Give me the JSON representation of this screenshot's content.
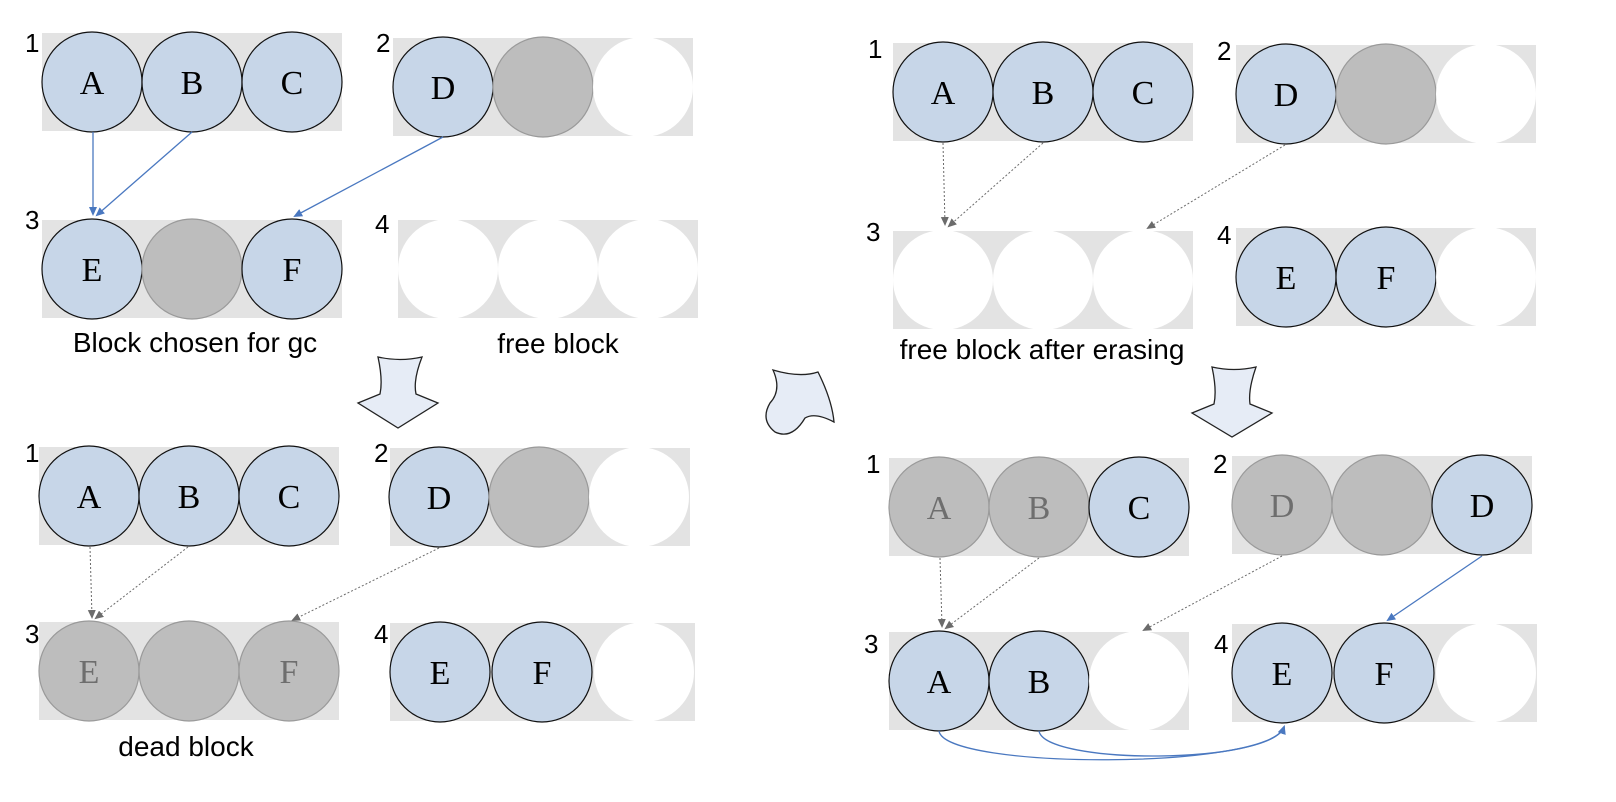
{
  "colors": {
    "block_bg": "#e3e3e3",
    "page_valid": "#c7d6e8",
    "page_invalid": "#bdbdbd",
    "page_free": "#ffffff",
    "text_valid": "#000000",
    "text_invalid": "#6e6e6e",
    "link_valid": "#4a78c0",
    "link_stale": "#6b6b6b",
    "step_arrow_fill": "#e6ecf6"
  },
  "panels": [
    {
      "id": "initial",
      "blocks": [
        {
          "num": "1",
          "pages": [
            {
              "label": "A",
              "state": "valid"
            },
            {
              "label": "B",
              "state": "valid"
            },
            {
              "label": "C",
              "state": "valid"
            }
          ]
        },
        {
          "num": "2",
          "pages": [
            {
              "label": "D",
              "state": "valid"
            },
            {
              "label": "",
              "state": "invalid"
            },
            {
              "label": "",
              "state": "free"
            }
          ]
        },
        {
          "num": "3",
          "pages": [
            {
              "label": "E",
              "state": "valid"
            },
            {
              "label": "",
              "state": "invalid"
            },
            {
              "label": "F",
              "state": "valid"
            }
          ]
        },
        {
          "num": "4",
          "pages": [
            {
              "label": "",
              "state": "free"
            },
            {
              "label": "",
              "state": "free"
            },
            {
              "label": "",
              "state": "free"
            }
          ]
        }
      ],
      "captions": [
        "Block chosen for gc",
        "free block"
      ]
    },
    {
      "id": "after-copy",
      "blocks": [
        {
          "num": "1",
          "pages": [
            {
              "label": "A",
              "state": "valid"
            },
            {
              "label": "B",
              "state": "valid"
            },
            {
              "label": "C",
              "state": "valid"
            }
          ]
        },
        {
          "num": "2",
          "pages": [
            {
              "label": "D",
              "state": "valid"
            },
            {
              "label": "",
              "state": "invalid"
            },
            {
              "label": "",
              "state": "free"
            }
          ]
        },
        {
          "num": "3",
          "pages": [
            {
              "label": "E",
              "state": "invalid"
            },
            {
              "label": "",
              "state": "invalid"
            },
            {
              "label": "F",
              "state": "invalid"
            }
          ]
        },
        {
          "num": "4",
          "pages": [
            {
              "label": "E",
              "state": "valid"
            },
            {
              "label": "F",
              "state": "valid"
            },
            {
              "label": "",
              "state": "free"
            }
          ]
        }
      ],
      "captions": [
        "dead block"
      ]
    },
    {
      "id": "after-erase",
      "blocks": [
        {
          "num": "1",
          "pages": [
            {
              "label": "A",
              "state": "valid"
            },
            {
              "label": "B",
              "state": "valid"
            },
            {
              "label": "C",
              "state": "valid"
            }
          ]
        },
        {
          "num": "2",
          "pages": [
            {
              "label": "D",
              "state": "valid"
            },
            {
              "label": "",
              "state": "invalid"
            },
            {
              "label": "",
              "state": "free"
            }
          ]
        },
        {
          "num": "3",
          "pages": [
            {
              "label": "",
              "state": "free"
            },
            {
              "label": "",
              "state": "free"
            },
            {
              "label": "",
              "state": "free"
            }
          ]
        },
        {
          "num": "4",
          "pages": [
            {
              "label": "E",
              "state": "valid"
            },
            {
              "label": "F",
              "state": "valid"
            },
            {
              "label": "",
              "state": "free"
            }
          ]
        }
      ],
      "captions": [
        "free block after erasing"
      ]
    },
    {
      "id": "after-rewrite",
      "blocks": [
        {
          "num": "1",
          "pages": [
            {
              "label": "A",
              "state": "invalid"
            },
            {
              "label": "B",
              "state": "invalid"
            },
            {
              "label": "C",
              "state": "valid"
            }
          ]
        },
        {
          "num": "2",
          "pages": [
            {
              "label": "D",
              "state": "invalid"
            },
            {
              "label": "",
              "state": "invalid"
            },
            {
              "label": "D",
              "state": "valid"
            }
          ]
        },
        {
          "num": "3",
          "pages": [
            {
              "label": "A",
              "state": "valid"
            },
            {
              "label": "B",
              "state": "valid"
            },
            {
              "label": "",
              "state": "free"
            }
          ]
        },
        {
          "num": "4",
          "pages": [
            {
              "label": "E",
              "state": "valid"
            },
            {
              "label": "F",
              "state": "valid"
            },
            {
              "label": "",
              "state": "free"
            }
          ]
        }
      ],
      "captions": []
    }
  ]
}
